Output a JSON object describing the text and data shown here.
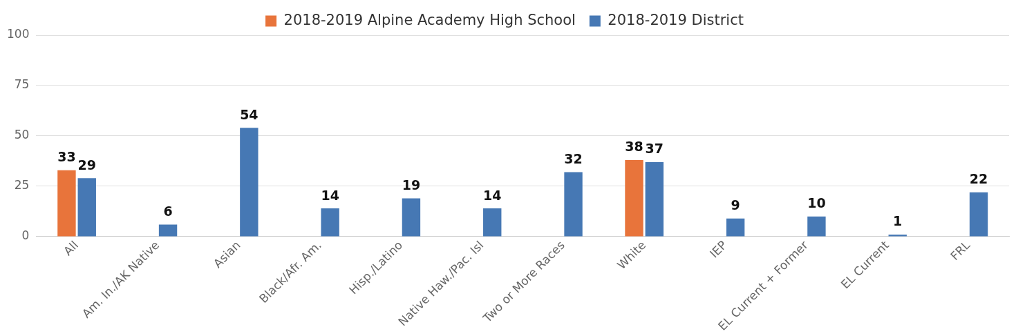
{
  "chart_data": {
    "type": "bar",
    "categories": [
      "All",
      "Am. In./AK Native",
      "Asian",
      "Black/Afr. Am.",
      "Hisp./Latino",
      "Native Haw./Pac. Isl",
      "Two or More Races",
      "White",
      "IEP",
      "EL Current + Former",
      "EL Current",
      "FRL"
    ],
    "series": [
      {
        "name": "2018-2019 Alpine Academy High School",
        "color": "#e8743b",
        "values": [
          33,
          null,
          null,
          null,
          null,
          null,
          null,
          38,
          null,
          null,
          null,
          null
        ]
      },
      {
        "name": "2018-2019 District",
        "color": "#4678b4",
        "values": [
          29,
          6,
          54,
          14,
          19,
          14,
          32,
          37,
          9,
          10,
          1,
          22
        ]
      }
    ],
    "ylim": [
      0,
      100
    ],
    "yticks": [
      0,
      25,
      50,
      75,
      100
    ],
    "grid": "y",
    "legend": "top",
    "data_labels": true
  }
}
